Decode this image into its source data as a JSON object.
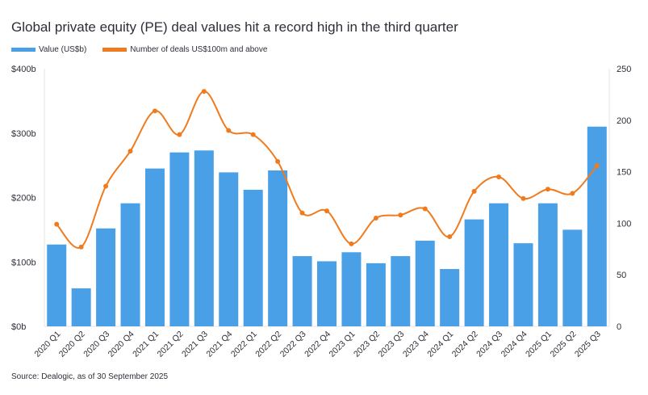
{
  "title": "Global private equity (PE) deal values hit a record high in the third quarter",
  "source": "Source: Dealogic, as of 30 September 2025",
  "colors": {
    "bar": "#4aa0e6",
    "line": "#f07b1e",
    "text": "#2e2e38",
    "axis": "#e4e4e4"
  },
  "chart_data": {
    "type": "bar",
    "title": "Global private equity (PE) deal values hit a record high in the third quarter",
    "categories": [
      "2020 Q1",
      "2020 Q2",
      "2020 Q3",
      "2020 Q4",
      "2021 Q1",
      "2021 Q2",
      "2021 Q3",
      "2021 Q4",
      "2022 Q1",
      "2022 Q2",
      "2022 Q3",
      "2022 Q4",
      "2023 Q1",
      "2023 Q2",
      "2023 Q3",
      "2023 Q4",
      "2024 Q1",
      "2024 Q2",
      "2024 Q3",
      "2024 Q4",
      "2025 Q1",
      "2025 Q2",
      "2025 Q3"
    ],
    "series": [
      {
        "name": "Value (US$b)",
        "type": "bar",
        "axis": "left",
        "values": [
          127,
          59,
          152,
          191,
          245,
          270,
          273,
          239,
          212,
          242,
          109,
          101,
          115,
          98,
          109,
          133,
          89,
          166,
          191,
          129,
          191,
          150,
          310
        ]
      },
      {
        "name": "Number of deals US$100m and above",
        "type": "line",
        "axis": "right",
        "values": [
          99,
          77,
          136,
          170,
          209,
          186,
          228,
          190,
          186,
          160,
          110,
          112,
          80,
          105,
          108,
          114,
          87,
          131,
          145,
          124,
          133,
          129,
          156
        ]
      }
    ],
    "left_axis": {
      "ylim": [
        0,
        400
      ],
      "ticks": [
        0,
        100,
        200,
        300,
        400
      ],
      "tick_labels": [
        "$0b",
        "$100b",
        "$200b",
        "$300b",
        "$400b"
      ]
    },
    "right_axis": {
      "ylim": [
        0,
        250
      ],
      "ticks": [
        0,
        50,
        100,
        150,
        200,
        250
      ],
      "tick_labels": [
        "0",
        "50",
        "100",
        "150",
        "200",
        "250"
      ]
    },
    "legend_position": "top-left",
    "grid": false
  }
}
